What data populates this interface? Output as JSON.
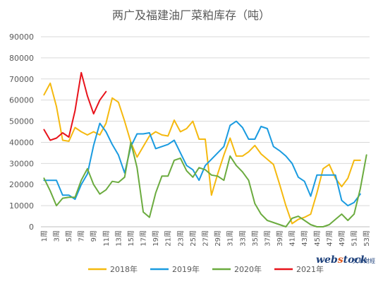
{
  "chart_data": {
    "type": "line",
    "title": "两广及福建油厂菜粕库存（吨）",
    "xlabel": "",
    "ylabel": "",
    "ylim": [
      0,
      90000
    ],
    "yticks": [
      0,
      10000,
      20000,
      30000,
      40000,
      50000,
      60000,
      70000,
      80000,
      90000
    ],
    "grid": true,
    "legend_position": "bottom",
    "x": [
      "1周",
      "2周",
      "3周",
      "4周",
      "5周",
      "6周",
      "7周",
      "8周",
      "9周",
      "10周",
      "11周",
      "12周",
      "13周",
      "14周",
      "15周",
      "16周",
      "17周",
      "18周",
      "19周",
      "20周",
      "21周",
      "22周",
      "23周",
      "24周",
      "25周",
      "26周",
      "27周",
      "28周",
      "29周",
      "30周",
      "31周",
      "32周",
      "33周",
      "34周",
      "35周",
      "36周",
      "37周",
      "38周",
      "39周",
      "40周",
      "41周",
      "42周",
      "43周",
      "44周",
      "45周",
      "46周",
      "47周",
      "48周",
      "49周",
      "50周",
      "51周",
      "52周",
      "53周"
    ],
    "x_tick_labels": [
      "1周",
      "3周",
      "5周",
      "7周",
      "9周",
      "11周",
      "13周",
      "15周",
      "17周",
      "19周",
      "21周",
      "23周",
      "25周",
      "27周",
      "29周",
      "31周",
      "33周",
      "35周",
      "37周",
      "39周",
      "41周",
      "43周",
      "45周",
      "47周",
      "49周",
      "51周",
      "53周"
    ],
    "series": [
      {
        "name": "2018年",
        "color": "#f5b90f",
        "values": [
          62500,
          68000,
          57000,
          41000,
          40500,
          47000,
          45000,
          43500,
          45000,
          43500,
          49000,
          61000,
          59000,
          50000,
          40000,
          33000,
          38000,
          43000,
          45000,
          43500,
          43000,
          50500,
          45000,
          46500,
          50000,
          41500,
          41500,
          15000,
          25000,
          34000,
          42000,
          33500,
          33500,
          35500,
          38500,
          34500,
          32000,
          29500,
          20000,
          10000,
          1500,
          3500,
          4500,
          6000,
          16000,
          27500,
          29500,
          23000,
          19000,
          23000,
          31500,
          31500,
          null
        ]
      },
      {
        "name": "2019年",
        "color": "#1a9be0",
        "values": [
          22000,
          22000,
          22000,
          15000,
          15000,
          13000,
          20000,
          25000,
          38500,
          49000,
          45000,
          39000,
          34000,
          25500,
          38000,
          44000,
          44000,
          44500,
          37000,
          38000,
          39000,
          41000,
          35000,
          29000,
          27000,
          22000,
          29000,
          32000,
          35000,
          38000,
          48000,
          50000,
          47000,
          41500,
          41500,
          47500,
          46500,
          38000,
          36000,
          33500,
          30000,
          23500,
          21500,
          14500,
          24500,
          24500,
          24500,
          24500,
          12500,
          10000,
          11500,
          15500,
          null
        ]
      },
      {
        "name": "2020年",
        "color": "#6bab3f",
        "values": [
          23000,
          17000,
          10000,
          13500,
          14000,
          14000,
          22000,
          27500,
          20000,
          15500,
          17500,
          21500,
          21000,
          23500,
          40000,
          28000,
          7000,
          4500,
          16000,
          24000,
          24000,
          31500,
          32500,
          26500,
          23500,
          28000,
          27000,
          24500,
          24000,
          22000,
          33500,
          29000,
          26000,
          22000,
          11000,
          6000,
          3000,
          2000,
          1000,
          0,
          4000,
          5000,
          3000,
          1000,
          0,
          0,
          1000,
          3500,
          6000,
          3000,
          6000,
          18000,
          34000
        ]
      },
      {
        "name": "2021年",
        "color": "#e8131b",
        "values": [
          46000,
          41000,
          42000,
          44500,
          42500,
          55000,
          73000,
          62000,
          53500,
          60000,
          64000,
          null,
          null,
          null,
          null,
          null,
          null,
          null,
          null,
          null,
          null,
          null,
          null,
          null,
          null,
          null,
          null,
          null,
          null,
          null,
          null,
          null,
          null,
          null,
          null,
          null,
          null,
          null,
          null,
          null,
          null,
          null,
          null,
          null,
          null,
          null,
          null,
          null,
          null,
          null,
          null,
          null,
          null
        ]
      }
    ]
  },
  "watermark": {
    "brand_a": "web",
    "brand_b": "s",
    "brand_c": "tock",
    "cn": "文華財經"
  }
}
